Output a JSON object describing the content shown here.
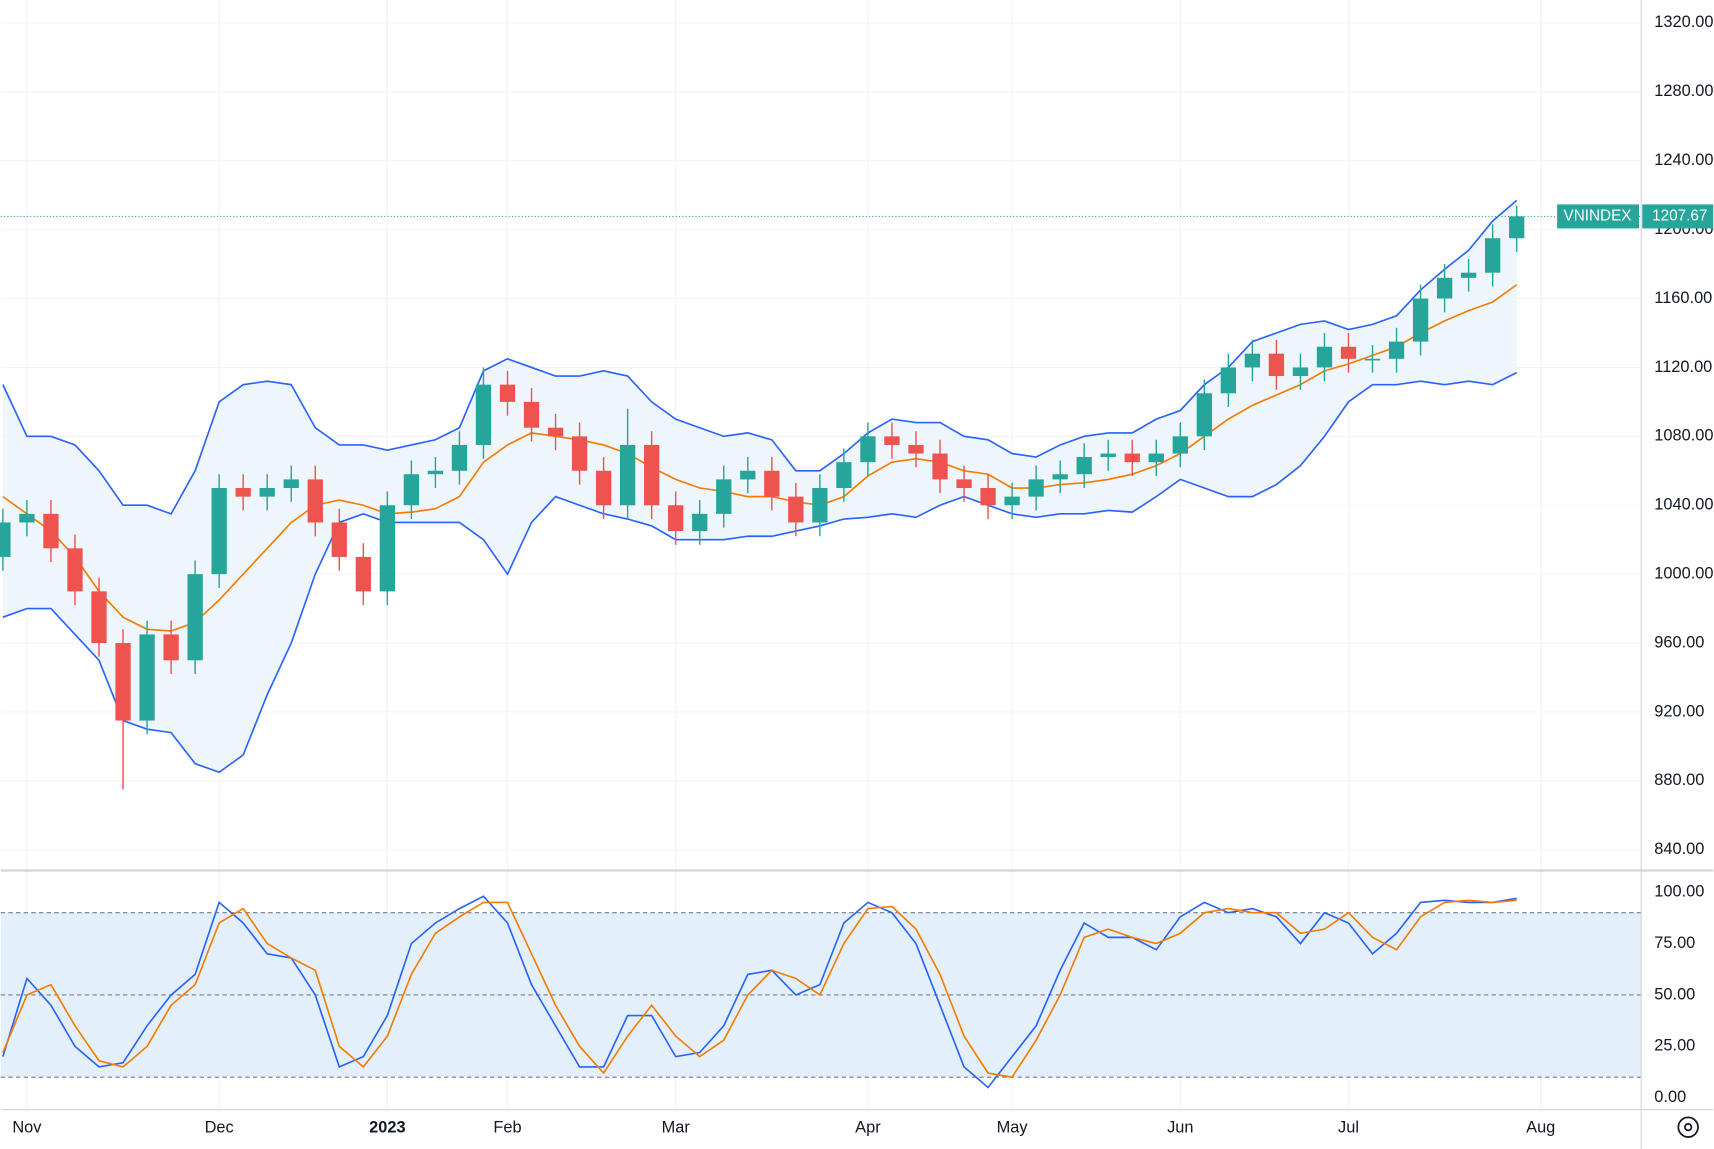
{
  "chart_data": [
    {
      "type": "candlestick",
      "symbol": "VNINDEX",
      "categories": [
        null,
        "Nov",
        null,
        null,
        null,
        null,
        null,
        null,
        null,
        "Dec",
        null,
        null,
        null,
        null,
        null,
        null,
        "2023",
        null,
        null,
        null,
        null,
        "Feb",
        null,
        null,
        null,
        null,
        null,
        null,
        "Mar",
        null,
        null,
        null,
        null,
        null,
        null,
        null,
        "Apr",
        null,
        null,
        null,
        null,
        null,
        "May",
        null,
        null,
        null,
        null,
        null,
        null,
        "Jun",
        null,
        null,
        null,
        null,
        null,
        null,
        "Jul",
        null,
        null,
        null,
        null,
        null,
        null,
        null,
        "Aug"
      ],
      "open": [
        1010,
        1030,
        1035,
        1015,
        990,
        960,
        915,
        965,
        950,
        1000,
        1050,
        1045,
        1050,
        1055,
        1030,
        1010,
        990,
        1040,
        1058,
        1060,
        1075,
        1110,
        1100,
        1085,
        1080,
        1060,
        1040,
        1075,
        1040,
        1025,
        1035,
        1055,
        1060,
        1045,
        1030,
        1050,
        1065,
        1080,
        1075,
        1070,
        1055,
        1050,
        1040,
        1045,
        1055,
        1058,
        1068,
        1070,
        1065,
        1070,
        1080,
        1105,
        1120,
        1128,
        1115,
        1120,
        1132,
        1125,
        1125,
        1135,
        1160,
        1172,
        1175,
        1195,
        null
      ],
      "high": [
        1038,
        1043,
        1043,
        1023,
        998,
        968,
        973,
        973,
        1008,
        1058,
        1058,
        1058,
        1063,
        1063,
        1038,
        1018,
        1048,
        1066,
        1068,
        1083,
        1120,
        1118,
        1108,
        1093,
        1088,
        1068,
        1096,
        1083,
        1048,
        1043,
        1063,
        1068,
        1068,
        1053,
        1058,
        1073,
        1088,
        1088,
        1083,
        1078,
        1063,
        1058,
        1053,
        1063,
        1066,
        1076,
        1078,
        1078,
        1078,
        1088,
        1113,
        1128,
        1136,
        1136,
        1128,
        1140,
        1140,
        1133,
        1143,
        1168,
        1180,
        1183,
        1203,
        1214,
        null
      ],
      "low": [
        1002,
        1022,
        1007,
        982,
        952,
        875,
        907,
        942,
        942,
        992,
        1037,
        1037,
        1042,
        1022,
        1002,
        982,
        982,
        1032,
        1050,
        1052,
        1067,
        1092,
        1077,
        1072,
        1052,
        1032,
        1032,
        1032,
        1017,
        1017,
        1027,
        1047,
        1037,
        1022,
        1022,
        1042,
        1057,
        1067,
        1062,
        1047,
        1042,
        1032,
        1032,
        1037,
        1047,
        1050,
        1060,
        1057,
        1057,
        1062,
        1072,
        1097,
        1112,
        1107,
        1107,
        1112,
        1117,
        1117,
        1117,
        1127,
        1152,
        1164,
        1167,
        1187,
        null
      ],
      "close": [
        1030,
        1035,
        1015,
        990,
        960,
        915,
        965,
        950,
        1000,
        1050,
        1045,
        1050,
        1055,
        1030,
        1010,
        990,
        1040,
        1058,
        1060,
        1075,
        1110,
        1100,
        1085,
        1080,
        1060,
        1040,
        1075,
        1040,
        1025,
        1035,
        1055,
        1060,
        1045,
        1030,
        1050,
        1065,
        1080,
        1075,
        1070,
        1055,
        1050,
        1040,
        1045,
        1055,
        1058,
        1068,
        1070,
        1065,
        1070,
        1080,
        1105,
        1120,
        1128,
        1115,
        1120,
        1132,
        1125,
        1125,
        1135,
        1160,
        1172,
        1175,
        1195,
        1207.67,
        null
      ],
      "up_color": "#26a69a",
      "down_color": "#ef5350",
      "bands": {
        "color": "#2962ff",
        "middle_color": "#f57c00",
        "fill": "#eef5fb",
        "upper": [
          1110,
          1080,
          1080,
          1075,
          1060,
          1040,
          1040,
          1035,
          1060,
          1100,
          1110,
          1112,
          1110,
          1085,
          1075,
          1075,
          1072,
          1075,
          1078,
          1085,
          1118,
          1125,
          1120,
          1115,
          1115,
          1118,
          1115,
          1100,
          1090,
          1085,
          1080,
          1082,
          1078,
          1060,
          1060,
          1070,
          1082,
          1090,
          1088,
          1088,
          1080,
          1078,
          1070,
          1068,
          1075,
          1080,
          1082,
          1082,
          1090,
          1095,
          1110,
          1120,
          1135,
          1140,
          1145,
          1147,
          1142,
          1145,
          1150,
          1165,
          1177,
          1188,
          1205,
          1217,
          null
        ],
        "middle": [
          1045,
          1035,
          1025,
          1010,
          990,
          975,
          968,
          967,
          972,
          985,
          1000,
          1015,
          1030,
          1040,
          1043,
          1040,
          1035,
          1036,
          1038,
          1045,
          1065,
          1075,
          1082,
          1080,
          1078,
          1075,
          1070,
          1062,
          1055,
          1050,
          1048,
          1045,
          1045,
          1042,
          1040,
          1045,
          1057,
          1065,
          1067,
          1065,
          1060,
          1058,
          1050,
          1050,
          1052,
          1053,
          1055,
          1058,
          1063,
          1070,
          1080,
          1090,
          1098,
          1104,
          1110,
          1118,
          1122,
          1127,
          1132,
          1140,
          1147,
          1153,
          1158,
          1168,
          null
        ],
        "lower": [
          975,
          980,
          980,
          965,
          950,
          915,
          910,
          908,
          890,
          885,
          895,
          930,
          960,
          1000,
          1030,
          1035,
          1030,
          1030,
          1030,
          1030,
          1020,
          1000,
          1030,
          1045,
          1040,
          1035,
          1032,
          1028,
          1020,
          1020,
          1020,
          1022,
          1022,
          1025,
          1028,
          1032,
          1033,
          1035,
          1033,
          1040,
          1045,
          1040,
          1035,
          1033,
          1035,
          1035,
          1037,
          1036,
          1045,
          1055,
          1050,
          1045,
          1045,
          1052,
          1063,
          1080,
          1100,
          1110,
          1110,
          1112,
          1110,
          1112,
          1110,
          1117,
          null
        ]
      },
      "ylim": [
        828.6,
        1333.3
      ],
      "yticks": [
        {
          "value": 840,
          "label": "840.00"
        },
        {
          "value": 880,
          "label": "880.00"
        },
        {
          "value": 920,
          "label": "920.00"
        },
        {
          "value": 960,
          "label": "960.00"
        },
        {
          "value": 1000,
          "label": "1000.00"
        },
        {
          "value": 1040,
          "label": "1040.00"
        },
        {
          "value": 1080,
          "label": "1080.00"
        },
        {
          "value": 1120,
          "label": "1120.00"
        },
        {
          "value": 1160,
          "label": "1160.00"
        },
        {
          "value": 1200,
          "label": "1200.00"
        },
        {
          "value": 1240,
          "label": "1240.00"
        },
        {
          "value": 1280,
          "label": "1280.00"
        },
        {
          "value": 1320,
          "label": "1320.00"
        }
      ],
      "grid": true
    },
    {
      "type": "line",
      "series": [
        {
          "color": "#2962ff",
          "values": [
            20,
            58,
            45,
            25,
            15,
            17,
            35,
            50,
            60,
            95,
            85,
            70,
            68,
            50,
            15,
            20,
            40,
            75,
            85,
            92,
            98,
            85,
            55,
            35,
            15,
            15,
            40,
            40,
            20,
            22,
            35,
            60,
            62,
            50,
            55,
            85,
            95,
            90,
            75,
            45,
            15,
            5,
            20,
            35,
            62,
            85,
            78,
            78,
            72,
            88,
            95,
            90,
            92,
            88,
            75,
            90,
            85,
            70,
            80,
            95,
            96,
            95,
            95,
            97,
            null
          ]
        },
        {
          "color": "#f57c00",
          "values": [
            22,
            50,
            55,
            35,
            18,
            15,
            25,
            45,
            55,
            85,
            92,
            75,
            68,
            62,
            25,
            15,
            30,
            60,
            80,
            88,
            95,
            95,
            70,
            45,
            25,
            12,
            30,
            45,
            30,
            20,
            28,
            50,
            62,
            58,
            50,
            75,
            92,
            93,
            82,
            60,
            30,
            12,
            10,
            28,
            50,
            78,
            82,
            78,
            75,
            80,
            90,
            92,
            90,
            90,
            80,
            82,
            90,
            78,
            72,
            88,
            95,
            96,
            95,
            96,
            null
          ]
        }
      ],
      "band": [
        10,
        90
      ],
      "band_color": "#e3f0fb",
      "levels": [
        10,
        50,
        90
      ],
      "ylim": [
        -5.8,
        110
      ],
      "yticks": [
        {
          "value": 0,
          "label": "0.00"
        },
        {
          "value": 25,
          "label": "25.00"
        },
        {
          "value": 50,
          "label": "50.00"
        },
        {
          "value": 75,
          "label": "75.00"
        },
        {
          "value": 100,
          "label": "100.00"
        }
      ]
    }
  ]
}
